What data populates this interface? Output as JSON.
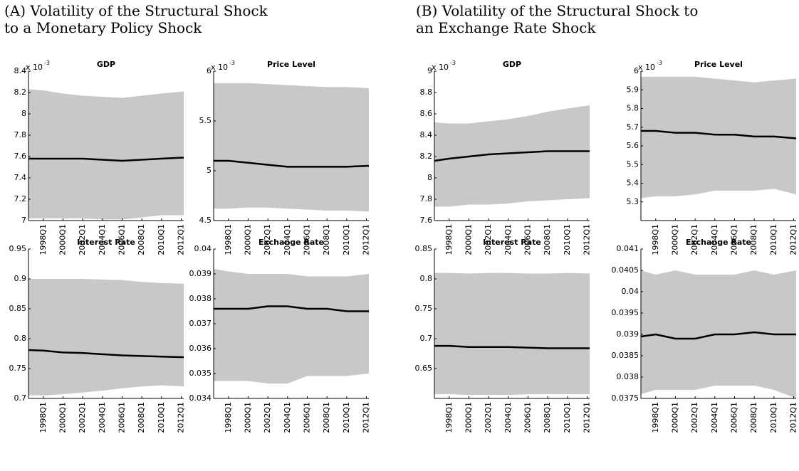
{
  "captions": [
    {
      "lines": [
        "(A) Volatility of the Structural Shock",
        "to a Monetary Policy Shock"
      ]
    },
    {
      "lines": [
        "(B) Volatility of the Structural Shock to",
        "an Exchange Rate Shock"
      ]
    }
  ],
  "chart_data": [
    {
      "type": "band",
      "title": "GDP",
      "scale_label": "x 10",
      "scale_exponent": "-3",
      "x": [
        1996.5,
        1998,
        2000,
        2002,
        2004,
        2006,
        2008,
        2010,
        2012.25
      ],
      "xlim": [
        1996.5,
        2012.25
      ],
      "xticks": [
        {
          "value": 1998,
          "label": "1998Q1"
        },
        {
          "value": 2000,
          "label": "2000Q1"
        },
        {
          "value": 2002,
          "label": "2002Q1"
        },
        {
          "value": 2004,
          "label": "2004Q1"
        },
        {
          "value": 2006,
          "label": "2006Q1"
        },
        {
          "value": 2008,
          "label": "2008Q1"
        },
        {
          "value": 2010,
          "label": "2010Q1"
        },
        {
          "value": 2012,
          "label": "2012Q1"
        }
      ],
      "ylim": [
        7,
        8.4
      ],
      "yticks": [
        7,
        7.2,
        7.4,
        7.6,
        7.8,
        8,
        8.2,
        8.4
      ],
      "band": {
        "color": "#c8c8c8",
        "upper": [
          8.23,
          8.22,
          8.19,
          8.17,
          8.16,
          8.15,
          8.17,
          8.19,
          8.21
        ],
        "lower": [
          7.02,
          7.02,
          7.02,
          7.02,
          7.01,
          7.01,
          7.03,
          7.05,
          7.05
        ]
      },
      "line": {
        "color": "#000000",
        "values": [
          7.58,
          7.58,
          7.58,
          7.58,
          7.57,
          7.56,
          7.57,
          7.58,
          7.59
        ]
      }
    },
    {
      "type": "band",
      "title": "Price Level",
      "scale_label": "x 10",
      "scale_exponent": "-3",
      "x": [
        1996.5,
        1998,
        2000,
        2002,
        2004,
        2006,
        2008,
        2010,
        2012.25
      ],
      "xlim": [
        1996.5,
        2012.25
      ],
      "xticks": [
        {
          "value": 1998,
          "label": "1998Q1"
        },
        {
          "value": 2000,
          "label": "2000Q1"
        },
        {
          "value": 2002,
          "label": "2002Q1"
        },
        {
          "value": 2004,
          "label": "2004Q1"
        },
        {
          "value": 2006,
          "label": "2006Q1"
        },
        {
          "value": 2008,
          "label": "2008Q1"
        },
        {
          "value": 2010,
          "label": "2010Q1"
        },
        {
          "value": 2012,
          "label": "2012Q1"
        }
      ],
      "ylim": [
        4.5,
        6
      ],
      "yticks": [
        4.5,
        5,
        5.5,
        6
      ],
      "band": {
        "color": "#c8c8c8",
        "upper": [
          5.88,
          5.88,
          5.88,
          5.87,
          5.86,
          5.85,
          5.84,
          5.84,
          5.83
        ],
        "lower": [
          4.62,
          4.62,
          4.63,
          4.63,
          4.62,
          4.61,
          4.6,
          4.6,
          4.59
        ]
      },
      "line": {
        "color": "#000000",
        "values": [
          5.1,
          5.1,
          5.08,
          5.06,
          5.04,
          5.04,
          5.04,
          5.04,
          5.05
        ]
      }
    },
    {
      "type": "band",
      "title": "Interest Rate",
      "x": [
        1996.5,
        1998,
        2000,
        2002,
        2004,
        2006,
        2008,
        2010,
        2012.25
      ],
      "xlim": [
        1996.5,
        2012.25
      ],
      "xticks": [
        {
          "value": 1998,
          "label": "1998Q1"
        },
        {
          "value": 2000,
          "label": "2000Q1"
        },
        {
          "value": 2002,
          "label": "2002Q1"
        },
        {
          "value": 2004,
          "label": "2004Q1"
        },
        {
          "value": 2006,
          "label": "2006Q1"
        },
        {
          "value": 2008,
          "label": "2008Q1"
        },
        {
          "value": 2010,
          "label": "2010Q1"
        },
        {
          "value": 2012,
          "label": "2012Q1"
        }
      ],
      "ylim": [
        0.7,
        0.95
      ],
      "yticks": [
        0.7,
        0.75,
        0.8,
        0.85,
        0.9,
        0.95
      ],
      "band": {
        "color": "#c8c8c8",
        "upper": [
          0.9,
          0.9,
          0.9,
          0.9,
          0.899,
          0.898,
          0.895,
          0.893,
          0.892
        ],
        "lower": [
          0.705,
          0.705,
          0.707,
          0.71,
          0.713,
          0.717,
          0.72,
          0.722,
          0.72
        ]
      },
      "line": {
        "color": "#000000",
        "values": [
          0.781,
          0.78,
          0.777,
          0.776,
          0.774,
          0.772,
          0.771,
          0.77,
          0.769
        ]
      }
    },
    {
      "type": "band",
      "title": "Exchange Rate",
      "x": [
        1996.5,
        1998,
        2000,
        2002,
        2004,
        2006,
        2008,
        2010,
        2012.25
      ],
      "xlim": [
        1996.5,
        2012.25
      ],
      "xticks": [
        {
          "value": 1998,
          "label": "1998Q1"
        },
        {
          "value": 2000,
          "label": "2000Q1"
        },
        {
          "value": 2002,
          "label": "2002Q1"
        },
        {
          "value": 2004,
          "label": "2004Q1"
        },
        {
          "value": 2006,
          "label": "2006Q1"
        },
        {
          "value": 2008,
          "label": "2008Q1"
        },
        {
          "value": 2010,
          "label": "2010Q1"
        },
        {
          "value": 2012,
          "label": "2012Q1"
        }
      ],
      "ylim": [
        0.034,
        0.04
      ],
      "yticks": [
        0.034,
        0.035,
        0.036,
        0.037,
        0.038,
        0.039,
        0.04
      ],
      "band": {
        "color": "#c8c8c8",
        "upper": [
          0.0392,
          0.0391,
          0.039,
          0.039,
          0.039,
          0.0389,
          0.0389,
          0.0389,
          0.039
        ],
        "lower": [
          0.0347,
          0.0347,
          0.0347,
          0.0346,
          0.0346,
          0.0349,
          0.0349,
          0.0349,
          0.035
        ]
      },
      "line": {
        "color": "#000000",
        "values": [
          0.0376,
          0.0376,
          0.0376,
          0.0377,
          0.0377,
          0.0376,
          0.0376,
          0.0375,
          0.0375
        ]
      }
    },
    {
      "type": "band",
      "title": "GDP",
      "scale_label": "x 10",
      "scale_exponent": "-3",
      "x": [
        1996.5,
        1998,
        2000,
        2002,
        2004,
        2006,
        2008,
        2010,
        2012.25
      ],
      "xlim": [
        1996.5,
        2012.25
      ],
      "xticks": [
        {
          "value": 1998,
          "label": "1998Q1"
        },
        {
          "value": 2000,
          "label": "2000Q1"
        },
        {
          "value": 2002,
          "label": "2002Q1"
        },
        {
          "value": 2004,
          "label": "2004Q1"
        },
        {
          "value": 2006,
          "label": "2006Q1"
        },
        {
          "value": 2008,
          "label": "2008Q1"
        },
        {
          "value": 2010,
          "label": "2010Q1"
        },
        {
          "value": 2012,
          "label": "2012Q1"
        }
      ],
      "ylim": [
        7.6,
        9
      ],
      "yticks": [
        7.6,
        7.8,
        8,
        8.2,
        8.4,
        8.6,
        8.8,
        9
      ],
      "band": {
        "color": "#c8c8c8",
        "upper": [
          8.52,
          8.51,
          8.51,
          8.53,
          8.55,
          8.58,
          8.62,
          8.65,
          8.68
        ],
        "lower": [
          7.73,
          7.73,
          7.75,
          7.75,
          7.76,
          7.78,
          7.79,
          7.8,
          7.81
        ]
      },
      "line": {
        "color": "#000000",
        "values": [
          8.16,
          8.18,
          8.2,
          8.22,
          8.23,
          8.24,
          8.25,
          8.25,
          8.25
        ]
      }
    },
    {
      "type": "band",
      "title": "Price Level",
      "scale_label": "x 10",
      "scale_exponent": "-3",
      "x": [
        1996.5,
        1998,
        2000,
        2002,
        2004,
        2006,
        2008,
        2010,
        2012.25
      ],
      "xlim": [
        1996.5,
        2012.25
      ],
      "xticks": [
        {
          "value": 1998,
          "label": "1998Q1"
        },
        {
          "value": 2000,
          "label": "2000Q1"
        },
        {
          "value": 2002,
          "label": "2002Q1"
        },
        {
          "value": 2004,
          "label": "2004Q1"
        },
        {
          "value": 2006,
          "label": "2006Q1"
        },
        {
          "value": 2008,
          "label": "2008Q1"
        },
        {
          "value": 2010,
          "label": "2010Q1"
        },
        {
          "value": 2012,
          "label": "2012Q1"
        }
      ],
      "ylim": [
        5.2,
        6
      ],
      "yticks": [
        5.3,
        5.4,
        5.5,
        5.6,
        5.7,
        5.8,
        5.9,
        6
      ],
      "band": {
        "color": "#c8c8c8",
        "upper": [
          5.97,
          5.97,
          5.97,
          5.97,
          5.96,
          5.95,
          5.94,
          5.95,
          5.96
        ],
        "lower": [
          5.32,
          5.33,
          5.33,
          5.34,
          5.36,
          5.36,
          5.36,
          5.37,
          5.34
        ]
      },
      "line": {
        "color": "#000000",
        "values": [
          5.68,
          5.68,
          5.67,
          5.67,
          5.66,
          5.66,
          5.65,
          5.65,
          5.64
        ]
      }
    },
    {
      "type": "band",
      "title": "Interest Rate",
      "x": [
        1996.5,
        1998,
        2000,
        2002,
        2004,
        2006,
        2008,
        2010,
        2012.25
      ],
      "xlim": [
        1996.5,
        2012.25
      ],
      "xticks": [
        {
          "value": 1998,
          "label": "1998Q1"
        },
        {
          "value": 2000,
          "label": "2000Q1"
        },
        {
          "value": 2002,
          "label": "2002Q1"
        },
        {
          "value": 2004,
          "label": "2004Q1"
        },
        {
          "value": 2006,
          "label": "2006Q1"
        },
        {
          "value": 2008,
          "label": "2008Q1"
        },
        {
          "value": 2010,
          "label": "2010Q1"
        },
        {
          "value": 2012,
          "label": "2012Q1"
        }
      ],
      "ylim": [
        0.6,
        0.85
      ],
      "yticks": [
        0.65,
        0.7,
        0.75,
        0.8,
        0.85
      ],
      "band": {
        "color": "#c8c8c8",
        "upper": [
          0.81,
          0.81,
          0.809,
          0.81,
          0.81,
          0.809,
          0.809,
          0.81,
          0.809
        ],
        "lower": [
          0.607,
          0.607,
          0.606,
          0.606,
          0.606,
          0.607,
          0.607,
          0.607,
          0.607
        ]
      },
      "line": {
        "color": "#000000",
        "values": [
          0.688,
          0.688,
          0.686,
          0.686,
          0.686,
          0.685,
          0.684,
          0.684,
          0.684
        ]
      }
    },
    {
      "type": "band",
      "title": "Exchange Rate",
      "x": [
        1996.5,
        1998,
        2000,
        2002,
        2004,
        2006,
        2008,
        2010,
        2012.25
      ],
      "xlim": [
        1996.5,
        2012.25
      ],
      "xticks": [
        {
          "value": 1998,
          "label": "1998Q1"
        },
        {
          "value": 2000,
          "label": "2000Q1"
        },
        {
          "value": 2002,
          "label": "2002Q1"
        },
        {
          "value": 2004,
          "label": "2004Q1"
        },
        {
          "value": 2006,
          "label": "2006Q1"
        },
        {
          "value": 2008,
          "label": "2008Q1"
        },
        {
          "value": 2010,
          "label": "2010Q1"
        },
        {
          "value": 2012,
          "label": "2012Q1"
        }
      ],
      "ylim": [
        0.0375,
        0.041
      ],
      "yticks": [
        0.0375,
        0.038,
        0.0385,
        0.039,
        0.0395,
        0.04,
        0.0405,
        0.041
      ],
      "band": {
        "color": "#c8c8c8",
        "upper": [
          0.0405,
          0.0404,
          0.0405,
          0.0404,
          0.0404,
          0.0404,
          0.0405,
          0.0404,
          0.0405
        ],
        "lower": [
          0.0376,
          0.0377,
          0.0377,
          0.0377,
          0.0378,
          0.0378,
          0.0378,
          0.0377,
          0.0375
        ]
      },
      "line": {
        "color": "#000000",
        "values": [
          0.03895,
          0.039,
          0.0389,
          0.0389,
          0.039,
          0.039,
          0.03905,
          0.039,
          0.039
        ]
      }
    }
  ]
}
